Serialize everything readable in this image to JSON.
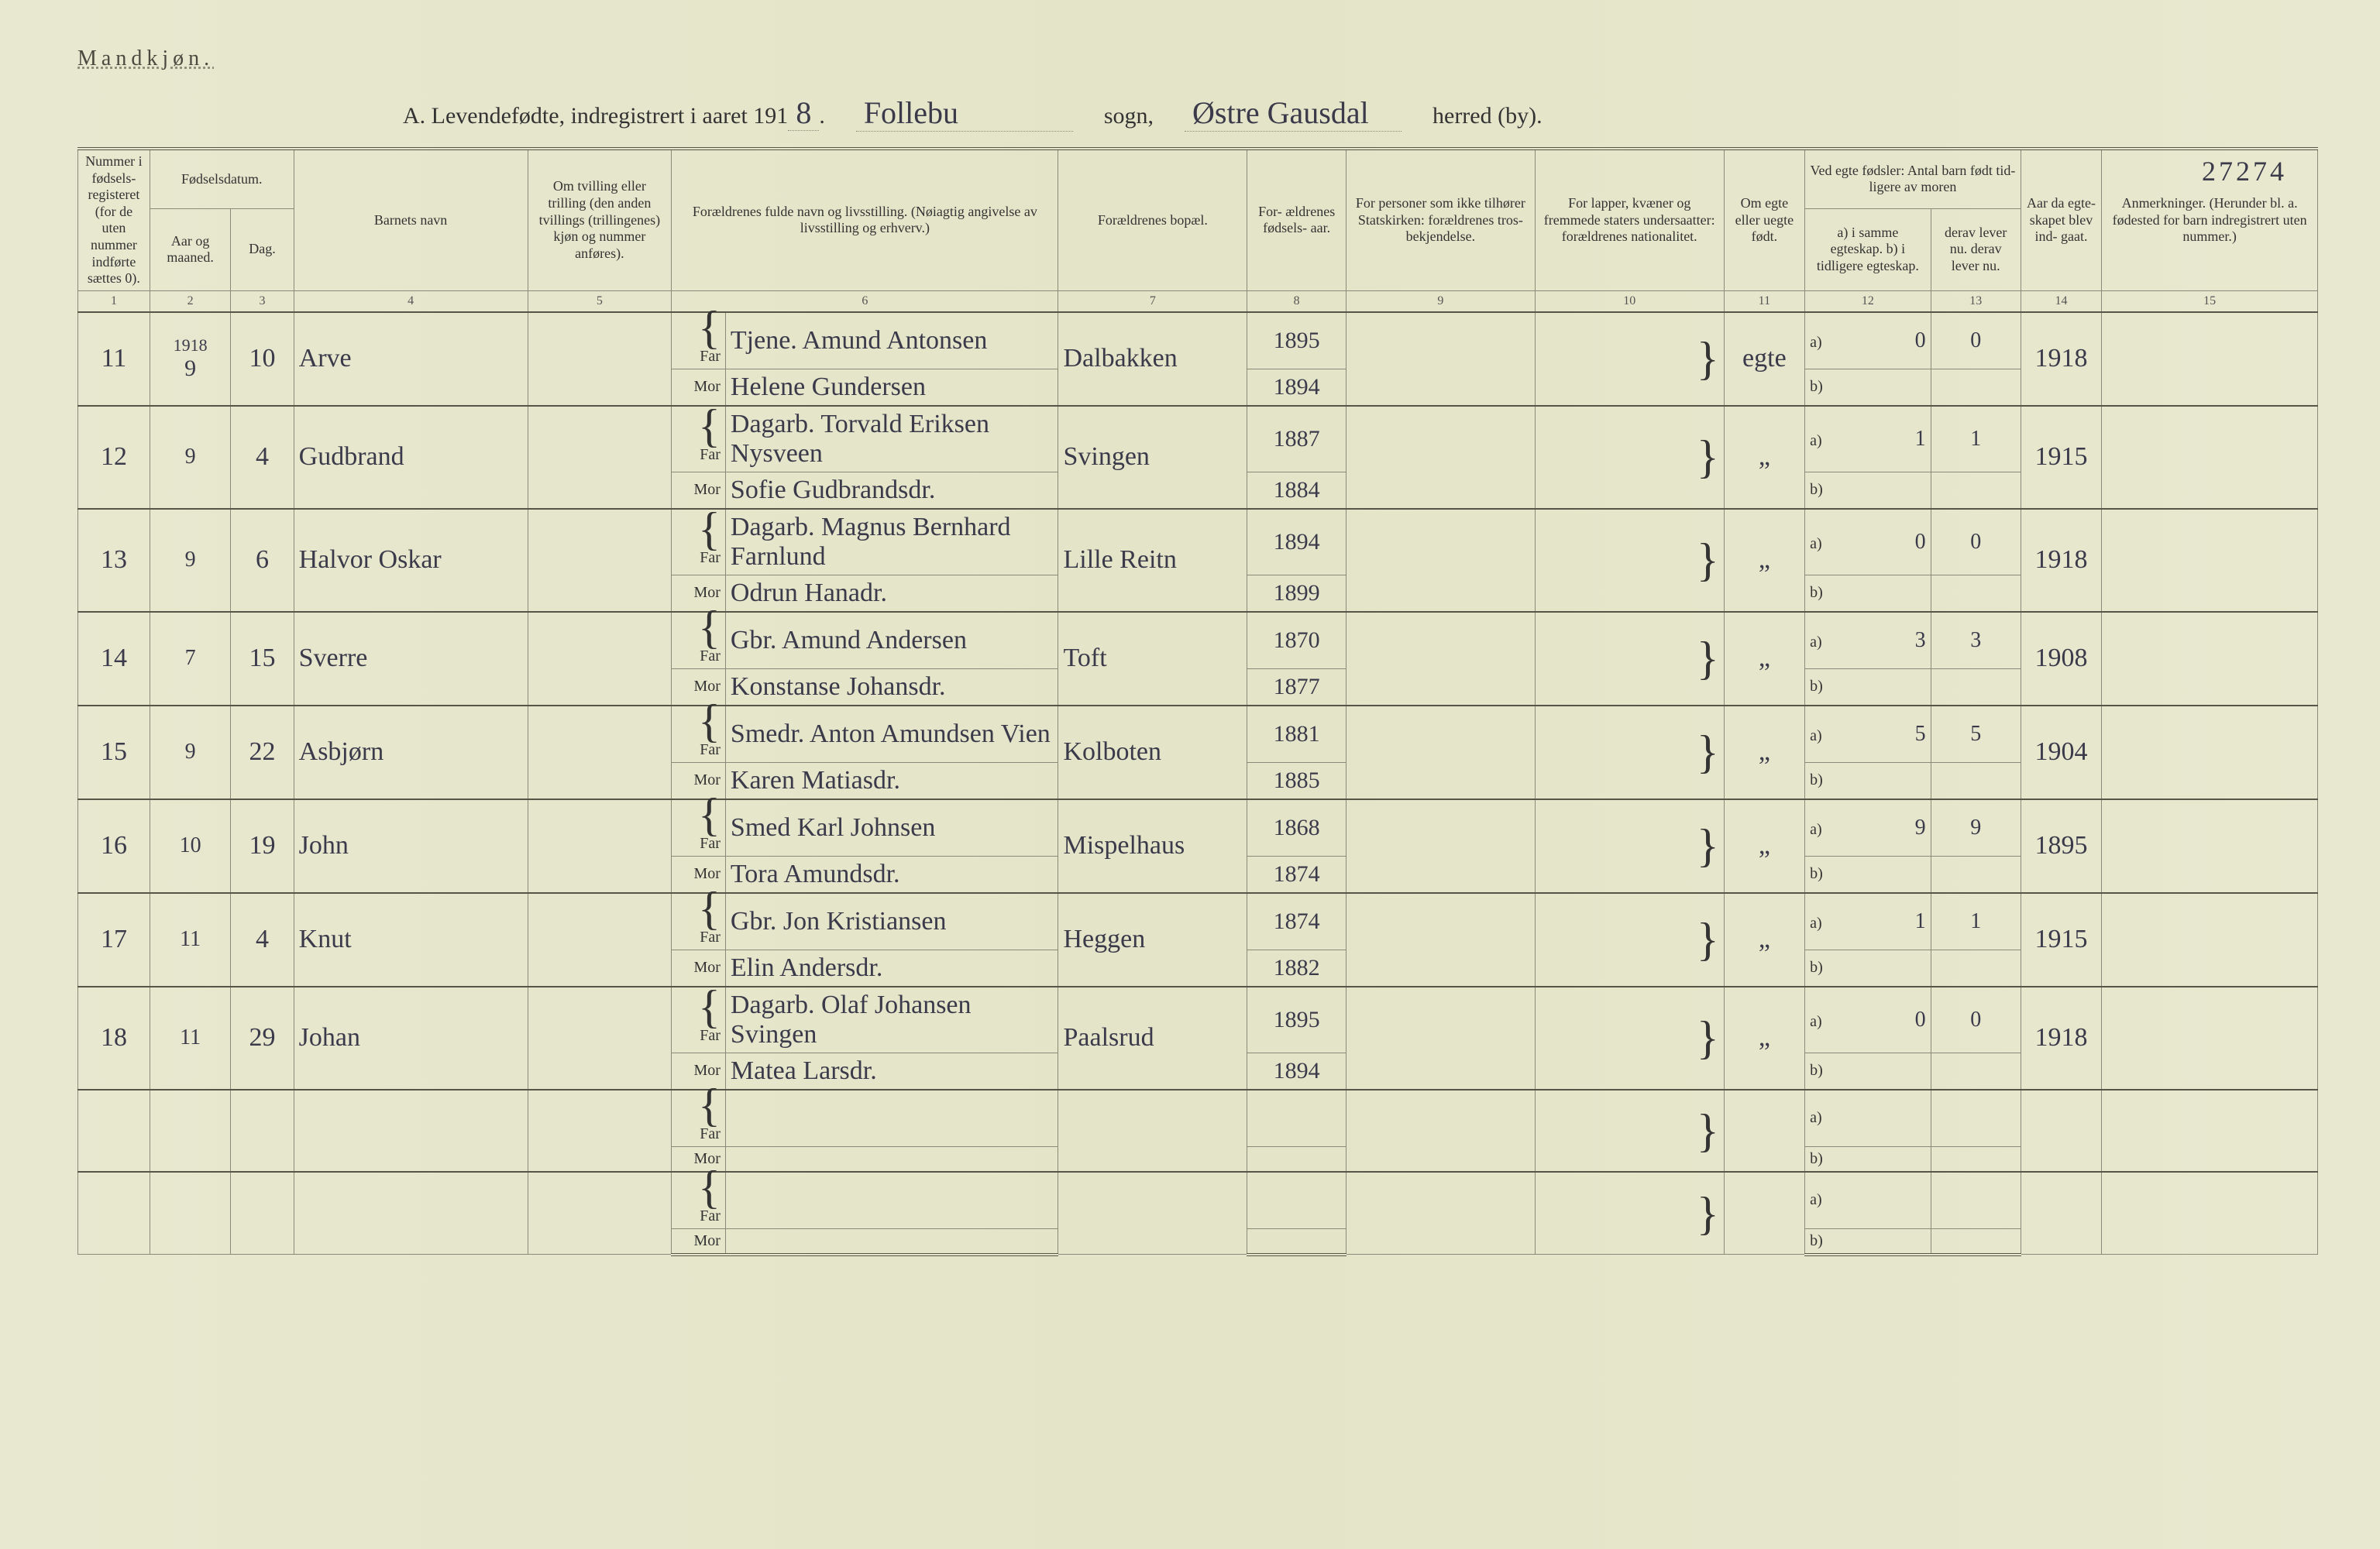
{
  "heading_gender": "Mandkjøn.",
  "title_prefix": "A. Levendefødte, indregistrert i aaret 191",
  "title_year_suffix": "8",
  "title_period": ".",
  "label_sogn": "sogn,",
  "label_herred": "herred (by).",
  "hand_sogn": "Follebu",
  "hand_herred": "Østre Gausdal",
  "page_number_hand": "27274",
  "columns": {
    "1": "Nummer i fødsels- registeret (for de uten nummer indførte sættes 0).",
    "2a": "Fødselsdatum.",
    "2": "Aar og maaned.",
    "3": "Dag.",
    "4": "Barnets navn",
    "5": "Om tvilling eller trilling (den anden tvillings (trillingenes) kjøn og nummer anføres).",
    "6": "Forældrenes fulde navn og livsstilling. (Nøiagtig angivelse av livsstilling og erhverv.)",
    "7": "Forældrenes bopæl.",
    "8": "For- ældrenes fødsels- aar.",
    "9": "For personer som ikke tilhører Statskirken: forældrenes tros- bekjendelse.",
    "10": "For lapper, kvæner og fremmede staters undersaatter: forældrenes nationalitet.",
    "11": "Om egte eller uegte født.",
    "12a": "Ved egte fødsler: Antal barn født tid- ligere av moren",
    "12": "a) i samme egteskap.  b) i tidligere egteskap.",
    "13": "derav lever nu.  derav lever nu.",
    "14": "Aar da egte- skapet blev ind- gaat.",
    "15": "Anmerkninger. (Herunder bl. a. fødested for barn indregistrert uten nummer.)"
  },
  "colnums": [
    "1",
    "2",
    "3",
    "4",
    "5",
    "6",
    "7",
    "8",
    "9",
    "10",
    "11",
    "12",
    "13",
    "14",
    "15"
  ],
  "far_label": "Far",
  "mor_label": "Mor",
  "a_label": "a)",
  "b_label": "b)",
  "rows": [
    {
      "num": "11",
      "year_top": "1918",
      "month": "9",
      "day": "10",
      "child": "Arve",
      "twin": "",
      "father": "Tjene. Amund Antonsen",
      "mother": "Helene Gundersen",
      "residence": "Dalbakken",
      "father_year": "1895",
      "mother_year": "1894",
      "legit": "egte",
      "a_count": "0",
      "a_live": "0",
      "marriage_year": "1918"
    },
    {
      "num": "12",
      "month": "9",
      "day": "4",
      "child": "Gudbrand",
      "twin": "",
      "father": "Dagarb. Torvald Eriksen Nysveen",
      "mother": "Sofie Gudbrandsdr.",
      "residence": "Svingen",
      "father_year": "1887",
      "mother_year": "1884",
      "legit": "„",
      "a_count": "1",
      "a_live": "1",
      "marriage_year": "1915"
    },
    {
      "num": "13",
      "month": "9",
      "day": "6",
      "child": "Halvor Oskar",
      "twin": "",
      "father": "Dagarb. Magnus Bernhard Farnlund",
      "mother": "Odrun Hanadr.",
      "residence": "Lille Reitn",
      "father_year": "1894",
      "mother_year": "1899",
      "legit": "„",
      "a_count": "0",
      "a_live": "0",
      "marriage_year": "1918"
    },
    {
      "num": "14",
      "month": "7",
      "day": "15",
      "child": "Sverre",
      "twin": "",
      "father": "Gbr. Amund Andersen",
      "mother": "Konstanse Johansdr.",
      "residence": "Toft",
      "father_year": "1870",
      "mother_year": "1877",
      "legit": "„",
      "a_count": "3",
      "a_live": "3",
      "marriage_year": "1908"
    },
    {
      "num": "15",
      "month": "9",
      "day": "22",
      "child": "Asbjørn",
      "twin": "",
      "father": "Smedr. Anton Amundsen Vien",
      "mother": "Karen Matiasdr.",
      "residence": "Kolboten",
      "father_year": "1881",
      "mother_year": "1885",
      "legit": "„",
      "a_count": "5",
      "a_live": "5",
      "marriage_year": "1904"
    },
    {
      "num": "16",
      "month": "10",
      "day": "19",
      "child": "John",
      "twin": "",
      "father": "Smed Karl Johnsen",
      "mother": "Tora Amundsdr.",
      "residence": "Mispelhaus",
      "father_year": "1868",
      "mother_year": "1874",
      "legit": "„",
      "a_count": "9",
      "a_live": "9",
      "marriage_year": "1895"
    },
    {
      "num": "17",
      "month": "11",
      "day": "4",
      "child": "Knut",
      "twin": "",
      "father": "Gbr. Jon Kristiansen",
      "mother": "Elin Andersdr.",
      "residence": "Heggen",
      "father_year": "1874",
      "mother_year": "1882",
      "legit": "„",
      "a_count": "1",
      "a_live": "1",
      "marriage_year": "1915"
    },
    {
      "num": "18",
      "month": "11",
      "day": "29",
      "child": "Johan",
      "twin": "",
      "father": "Dagarb. Olaf Johansen Svingen",
      "mother": "Matea Larsdr.",
      "residence": "Paalsrud",
      "father_year": "1895",
      "mother_year": "1894",
      "legit": "„",
      "a_count": "0",
      "a_live": "0",
      "marriage_year": "1918"
    },
    {
      "num": "",
      "month": "",
      "day": "",
      "child": "",
      "twin": "",
      "father": "",
      "mother": "",
      "residence": "",
      "father_year": "",
      "mother_year": "",
      "legit": "",
      "a_count": "",
      "a_live": "",
      "marriage_year": ""
    },
    {
      "num": "",
      "month": "",
      "day": "",
      "child": "",
      "twin": "",
      "father": "",
      "mother": "",
      "residence": "",
      "father_year": "",
      "mother_year": "",
      "legit": "",
      "a_count": "",
      "a_live": "",
      "marriage_year": ""
    }
  ]
}
